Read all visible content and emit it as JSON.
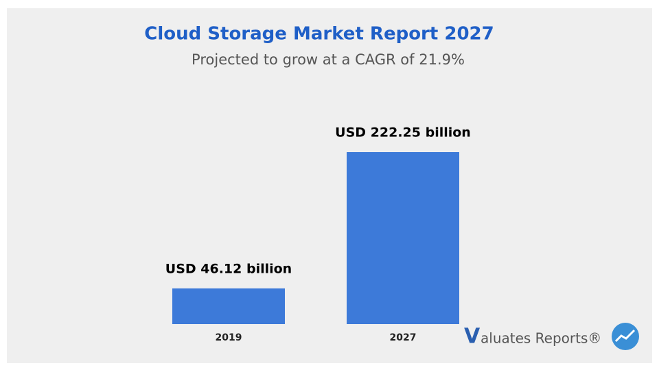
{
  "chart_data": {
    "type": "bar",
    "title": "Cloud Storage Market Report 2027",
    "subtitle": "Projected to grow at a CAGR of 21.9%",
    "categories": [
      "2019",
      "2027"
    ],
    "values": [
      46.12,
      222.25
    ],
    "value_labels": [
      "USD 46.12 billion",
      "USD 222.25 billion"
    ],
    "color": "#3d7ad9"
  },
  "logo": {
    "mark": "V",
    "text": "aluates Reports®"
  }
}
